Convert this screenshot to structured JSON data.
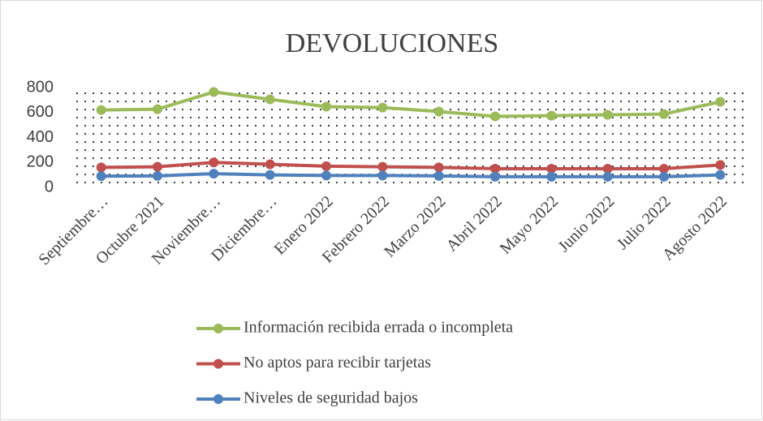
{
  "chart_data": {
    "type": "line",
    "title": "DEVOLUCIONES",
    "categories": [
      "Septiembre…",
      "Octubre 2021",
      "Noviembre…",
      "Diciembre…",
      "Enero 2022",
      "Febrero 2022",
      "Marzo 2022",
      "Abril 2022",
      "Mayo 2022",
      "Junio 2022",
      "Julio 2022",
      "Agosto 2022"
    ],
    "series": [
      {
        "name": "Información recibida errada o incompleta",
        "color": "#9bbb59",
        "values": [
          620,
          627,
          765,
          706,
          647,
          640,
          608,
          569,
          575,
          582,
          588,
          686
        ]
      },
      {
        "name": "No aptos para recibir tarjetas",
        "color": "#c0504d",
        "values": [
          160,
          165,
          200,
          185,
          170,
          165,
          160,
          150,
          150,
          150,
          150,
          180
        ]
      },
      {
        "name": "Niveles de seguridad bajos",
        "color": "#4f81bd",
        "values": [
          90,
          92,
          110,
          100,
          95,
          95,
          92,
          85,
          85,
          85,
          85,
          100
        ]
      }
    ],
    "ylim": [
      0,
      800
    ],
    "yticks": [
      0,
      200,
      400,
      600,
      800
    ]
  }
}
